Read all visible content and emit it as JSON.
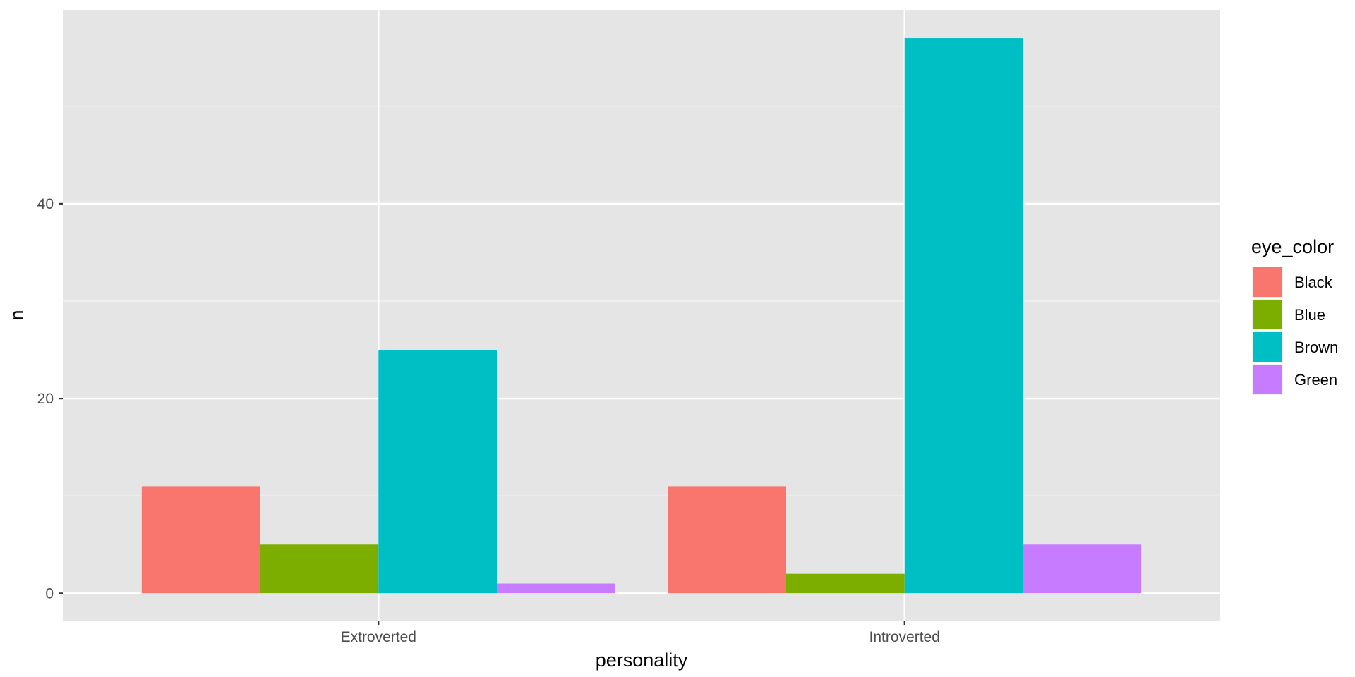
{
  "chart_data": {
    "type": "bar",
    "xlabel": "personality",
    "ylabel": "n",
    "categories": [
      "Extroverted",
      "Introverted"
    ],
    "series": [
      {
        "name": "Black",
        "color": "#F8766D",
        "values": [
          11,
          11
        ]
      },
      {
        "name": "Blue",
        "color": "#7CAE00",
        "values": [
          5,
          2
        ]
      },
      {
        "name": "Brown",
        "color": "#00BFC4",
        "values": [
          25,
          57
        ]
      },
      {
        "name": "Green",
        "color": "#C77CFF",
        "values": [
          1,
          5
        ]
      }
    ],
    "ylim": [
      -2.8,
      59.9
    ],
    "yticks": [
      0,
      20,
      40
    ],
    "grid": true,
    "panel_background": "#EBEBEB",
    "legend": {
      "title": "eye_color",
      "position": "right"
    }
  }
}
